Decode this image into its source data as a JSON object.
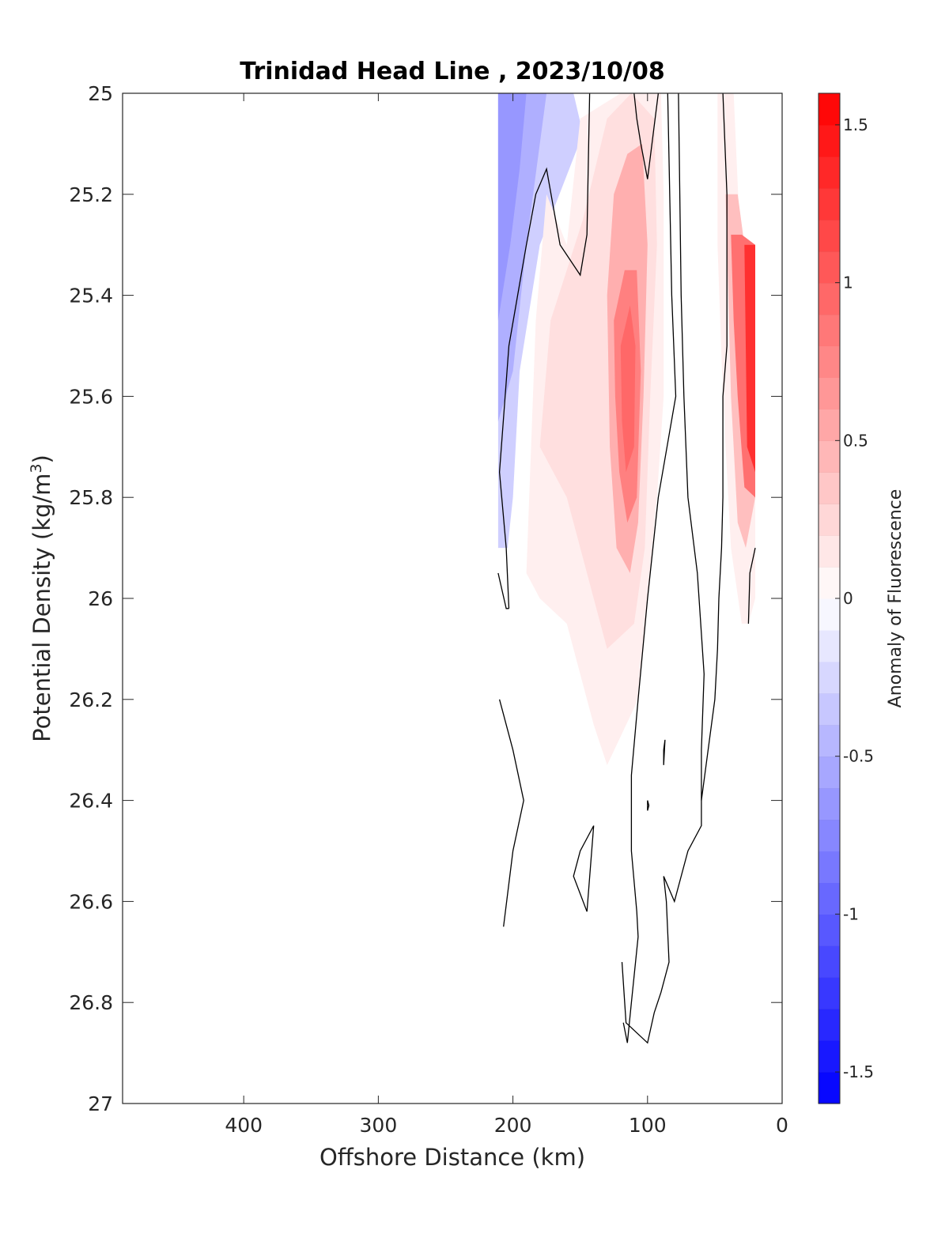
{
  "chart_data": {
    "type": "contourf",
    "title": "Trinidad Head Line , 2023/10/08",
    "xlabel": "Offshore Distance (km)",
    "ylabel_main": "Potential Density (kg/m",
    "ylabel_sup": "3",
    "ylabel_close": ")",
    "xlim": [
      490,
      0
    ],
    "ylim": [
      27,
      25
    ],
    "y_reversed": true,
    "x_ticks": [
      400,
      300,
      200,
      100,
      0
    ],
    "x_tick_labels": [
      "400",
      "300",
      "200",
      "100",
      "0"
    ],
    "y_ticks": [
      25,
      25.2,
      25.4,
      25.6,
      25.8,
      26,
      26.2,
      26.4,
      26.6,
      26.8,
      27
    ],
    "y_tick_labels": [
      "25",
      "25.2",
      "25.4",
      "25.6",
      "25.8",
      "26",
      "26.2",
      "26.4",
      "26.6",
      "26.8",
      "27"
    ],
    "colorbar": {
      "label": "Anomaly of Fluorescence",
      "range": [
        -1.6,
        1.6
      ],
      "step": 0.1,
      "ticks": [
        1.5,
        1,
        0.5,
        0,
        -0.5,
        -1,
        -1.5
      ],
      "tick_labels": [
        "1.5",
        "1",
        "0.5",
        "0",
        "-0.5",
        "-1",
        "-1.5"
      ],
      "colormap": "blue-white-red",
      "negative_color": "#0000ff",
      "positive_color": "#ff0000"
    },
    "fill_regions": [
      {
        "value": -0.3,
        "points": [
          [
            211,
            25
          ],
          [
            155,
            25
          ],
          [
            148,
            25.08
          ],
          [
            180,
            25.3
          ],
          [
            195,
            25.55
          ],
          [
            200,
            25.8
          ],
          [
            204,
            25.9
          ],
          [
            211,
            25.9
          ]
        ]
      },
      {
        "value": -0.5,
        "points": [
          [
            211,
            25
          ],
          [
            175,
            25
          ],
          [
            180,
            25.1
          ],
          [
            190,
            25.3
          ],
          [
            200,
            25.55
          ],
          [
            211,
            25.65
          ]
        ]
      },
      {
        "value": -0.65,
        "points": [
          [
            211,
            25
          ],
          [
            190,
            25
          ],
          [
            195,
            25.15
          ],
          [
            202,
            25.3
          ],
          [
            211,
            25.45
          ]
        ]
      },
      {
        "value": -0.3,
        "points": [
          [
            108,
            25
          ],
          [
            95,
            25
          ],
          [
            100,
            25.1
          ]
        ]
      },
      {
        "value": 0.1,
        "points": [
          [
            190,
            25.95
          ],
          [
            183,
            25.45
          ],
          [
            175,
            25.2
          ],
          [
            160,
            25.3
          ],
          [
            150,
            25.05
          ],
          [
            120,
            25.0
          ],
          [
            90,
            25.0
          ],
          [
            88,
            25.2
          ],
          [
            88,
            25.6
          ],
          [
            93,
            25.8
          ],
          [
            100,
            26.0
          ],
          [
            107,
            26.2
          ],
          [
            130,
            26.33
          ],
          [
            140,
            26.25
          ],
          [
            160,
            26.05
          ],
          [
            180,
            26.0
          ]
        ]
      },
      {
        "value": 0.2,
        "points": [
          [
            180,
            25.7
          ],
          [
            172,
            25.45
          ],
          [
            160,
            25.35
          ],
          [
            148,
            25.25
          ],
          [
            130,
            25.05
          ],
          [
            112,
            25.0
          ],
          [
            95,
            25.05
          ],
          [
            93,
            25.3
          ],
          [
            98,
            25.6
          ],
          [
            102,
            25.9
          ],
          [
            110,
            26.05
          ],
          [
            130,
            26.1
          ],
          [
            145,
            25.95
          ],
          [
            160,
            25.8
          ]
        ]
      },
      {
        "value": 0.5,
        "points": [
          [
            130,
            25.4
          ],
          [
            125,
            25.2
          ],
          [
            115,
            25.12
          ],
          [
            104,
            25.1
          ],
          [
            100,
            25.3
          ],
          [
            103,
            25.6
          ],
          [
            107,
            25.85
          ],
          [
            113,
            25.95
          ],
          [
            123,
            25.9
          ],
          [
            128,
            25.7
          ]
        ]
      },
      {
        "value": 0.8,
        "points": [
          [
            125,
            25.45
          ],
          [
            117,
            25.35
          ],
          [
            108,
            25.35
          ],
          [
            105,
            25.55
          ],
          [
            108,
            25.8
          ],
          [
            115,
            25.85
          ],
          [
            121,
            25.75
          ],
          [
            124,
            25.6
          ]
        ]
      },
      {
        "value": 0.95,
        "points": [
          [
            120,
            25.5
          ],
          [
            113,
            25.42
          ],
          [
            109,
            25.5
          ],
          [
            110,
            25.7
          ],
          [
            116,
            25.75
          ],
          [
            119,
            25.65
          ]
        ]
      },
      {
        "value": 0.1,
        "points": [
          [
            48,
            25.0
          ],
          [
            36,
            25.0
          ],
          [
            31,
            25.3
          ],
          [
            20,
            25.3
          ],
          [
            20,
            26.0
          ],
          [
            25,
            26.05
          ],
          [
            30,
            26.05
          ],
          [
            38,
            25.9
          ],
          [
            44,
            25.6
          ],
          [
            48,
            25.3
          ]
        ]
      },
      {
        "value": 0.4,
        "points": [
          [
            42,
            25.2
          ],
          [
            33,
            25.2
          ],
          [
            28,
            25.3
          ],
          [
            20,
            25.3
          ],
          [
            20,
            25.8
          ],
          [
            27,
            25.9
          ],
          [
            33,
            25.85
          ],
          [
            38,
            25.6
          ]
        ]
      },
      {
        "value": 0.9,
        "points": [
          [
            38,
            25.28
          ],
          [
            30,
            25.28
          ],
          [
            20,
            25.3
          ],
          [
            20,
            25.8
          ],
          [
            28,
            25.78
          ],
          [
            33,
            25.6
          ],
          [
            36,
            25.45
          ]
        ]
      },
      {
        "value": 1.3,
        "points": [
          [
            28,
            25.3
          ],
          [
            20,
            25.3
          ],
          [
            20,
            25.75
          ],
          [
            26,
            25.7
          ],
          [
            27,
            25.5
          ]
        ]
      }
    ],
    "contour_lines": [
      {
        "level": 0,
        "points": [
          [
            203,
            26.02
          ],
          [
            205,
            25.9
          ],
          [
            210,
            25.75
          ],
          [
            203,
            25.5
          ],
          [
            190,
            25.3
          ],
          [
            183,
            25.2
          ],
          [
            175,
            25.15
          ],
          [
            165,
            25.3
          ],
          [
            150,
            25.36
          ],
          [
            145,
            25.28
          ],
          [
            143,
            25.0
          ]
        ]
      },
      {
        "level": 0,
        "points": [
          [
            110,
            25.0
          ],
          [
            108,
            25.05
          ],
          [
            105,
            25.1
          ],
          [
            100,
            25.17
          ],
          [
            92,
            25.0
          ]
        ]
      },
      {
        "level": 0,
        "points": [
          [
            85,
            25.0
          ],
          [
            82,
            25.4
          ],
          [
            79,
            25.6
          ],
          [
            92,
            25.8
          ],
          [
            100,
            26.0
          ],
          [
            107,
            26.2
          ],
          [
            112,
            26.35
          ],
          [
            112,
            26.5
          ],
          [
            108,
            26.62
          ],
          [
            107,
            26.67
          ],
          [
            112,
            26.8
          ],
          [
            115,
            26.88
          ],
          [
            118,
            26.84
          ]
        ]
      },
      {
        "level": 0,
        "points": [
          [
            119,
            26.72
          ],
          [
            116,
            26.84
          ],
          [
            100,
            26.88
          ],
          [
            95,
            26.82
          ],
          [
            90,
            26.78
          ],
          [
            84,
            26.72
          ],
          [
            86,
            26.6
          ],
          [
            88,
            26.55
          ],
          [
            80,
            26.6
          ],
          [
            70,
            26.5
          ],
          [
            60,
            26.45
          ],
          [
            60,
            26.3
          ],
          [
            58,
            26.15
          ],
          [
            63,
            25.95
          ],
          [
            70,
            25.8
          ],
          [
            73,
            25.6
          ],
          [
            75,
            25.4
          ],
          [
            77,
            25.0
          ]
        ]
      },
      {
        "level": 0,
        "points": [
          [
            140,
            26.45
          ],
          [
            145,
            26.62
          ],
          [
            155,
            26.55
          ],
          [
            150,
            26.5
          ],
          [
            140,
            26.45
          ]
        ]
      },
      {
        "level": 0,
        "points": [
          [
            210,
            26.2
          ],
          [
            200,
            26.3
          ],
          [
            192,
            26.4
          ],
          [
            200,
            26.5
          ],
          [
            207,
            26.65
          ]
        ]
      },
      {
        "level": 0,
        "points": [
          [
            88,
            26.3
          ],
          [
            87,
            26.28
          ],
          [
            88,
            26.33
          ],
          [
            88,
            26.3
          ]
        ]
      },
      {
        "level": 0,
        "points": [
          [
            100,
            26.4
          ],
          [
            99,
            26.41
          ],
          [
            100,
            26.42
          ],
          [
            100,
            26.4
          ]
        ]
      },
      {
        "level": 0,
        "points": [
          [
            44,
            25.0
          ],
          [
            41,
            25.2
          ],
          [
            41,
            25.5
          ],
          [
            44,
            25.6
          ],
          [
            44,
            25.8
          ],
          [
            45,
            25.9
          ],
          [
            47,
            26.0
          ],
          [
            48,
            26.1
          ],
          [
            50,
            26.2
          ],
          [
            55,
            26.3
          ],
          [
            60,
            26.4
          ]
        ]
      },
      {
        "level": 0,
        "points": [
          [
            25,
            26.05
          ],
          [
            24,
            25.95
          ],
          [
            20,
            25.9
          ]
        ]
      },
      {
        "level": 0,
        "points": [
          [
            211,
            25.95
          ],
          [
            205,
            26.02
          ],
          [
            203,
            26.02
          ]
        ]
      }
    ]
  }
}
